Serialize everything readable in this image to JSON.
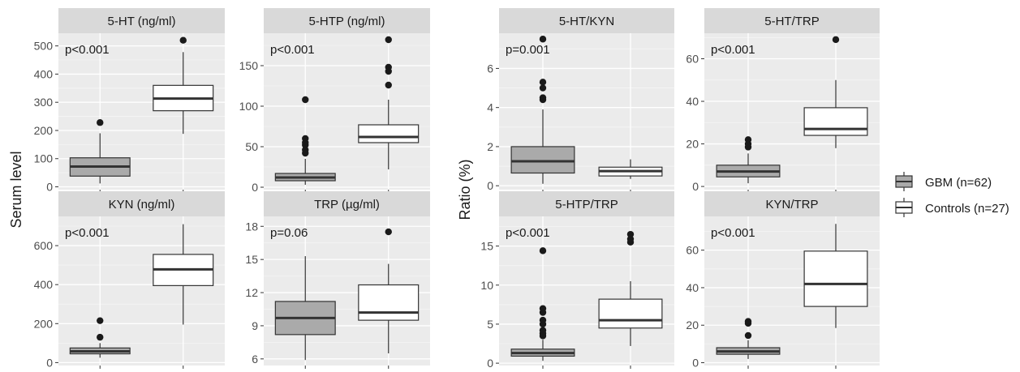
{
  "figure": {
    "left_ylabel": "Serum level",
    "right_ylabel": "Ratio (%)"
  },
  "legend": {
    "items": [
      {
        "label": "GBM (n=62)",
        "color": "#aaaaaa"
      },
      {
        "label": "Controls (n=27)",
        "color": "#ffffff"
      }
    ]
  },
  "chart_data": [
    {
      "type": "box",
      "title": "5-HT (ng/ml)",
      "pvalue": "p<0.001",
      "ylim": [
        -10,
        545
      ],
      "yticks": [
        0,
        100,
        200,
        300,
        400,
        500
      ],
      "groups": [
        {
          "name": "GBM (n=62)",
          "whisker_low": 12,
          "q1": 38,
          "median": 72,
          "q3": 103,
          "whisker_high": 190,
          "outliers": [
            228
          ]
        },
        {
          "name": "Controls (n=27)",
          "whisker_low": 188,
          "q1": 270,
          "median": 313,
          "q3": 360,
          "whisker_high": 478,
          "outliers": [
            520
          ]
        }
      ]
    },
    {
      "type": "box",
      "title": "5-HTP (ng/ml)",
      "pvalue": "p<0.001",
      "ylim": [
        -3,
        190
      ],
      "yticks": [
        0,
        50,
        100,
        150
      ],
      "groups": [
        {
          "name": "GBM (n=62)",
          "whisker_low": 3,
          "q1": 8,
          "median": 12,
          "q3": 17,
          "whisker_high": 35,
          "outliers": [
            42,
            46,
            52,
            55,
            60,
            108
          ]
        },
        {
          "name": "Controls (n=27)",
          "whisker_low": 22,
          "q1": 55,
          "median": 62,
          "q3": 77,
          "whisker_high": 108,
          "outliers": [
            126,
            143,
            148,
            182
          ]
        }
      ]
    },
    {
      "type": "box",
      "title": "KYN (ng/ml)",
      "pvalue": "p<0.001",
      "ylim": [
        -15,
        750
      ],
      "yticks": [
        0,
        200,
        400,
        600
      ],
      "groups": [
        {
          "name": "GBM (n=62)",
          "whisker_low": 25,
          "q1": 45,
          "median": 58,
          "q3": 75,
          "whisker_high": 100,
          "outliers": [
            130,
            215
          ]
        },
        {
          "name": "Controls (n=27)",
          "whisker_low": 195,
          "q1": 395,
          "median": 478,
          "q3": 555,
          "whisker_high": 710,
          "outliers": []
        }
      ]
    },
    {
      "type": "box",
      "title": "TRP (µg/ml)",
      "pvalue": "p=0.06",
      "ylim": [
        5.4,
        18.9
      ],
      "yticks": [
        6,
        9,
        12,
        15,
        18
      ],
      "groups": [
        {
          "name": "GBM (n=62)",
          "whisker_low": 5.9,
          "q1": 8.2,
          "median": 9.7,
          "q3": 11.2,
          "whisker_high": 15.3,
          "outliers": []
        },
        {
          "name": "Controls (n=27)",
          "whisker_low": 6.5,
          "q1": 9.5,
          "median": 10.2,
          "q3": 12.7,
          "whisker_high": 14.6,
          "outliers": [
            17.5
          ]
        }
      ]
    },
    {
      "type": "box",
      "title": "5-HT/KYN",
      "pvalue": "p=0.001",
      "ylim": [
        -0.2,
        7.8
      ],
      "yticks": [
        0,
        2,
        4,
        6
      ],
      "groups": [
        {
          "name": "GBM (n=62)",
          "whisker_low": 0.1,
          "q1": 0.65,
          "median": 1.25,
          "q3": 2.0,
          "whisker_high": 3.9,
          "outliers": [
            4.4,
            4.5,
            5.0,
            5.3,
            7.5
          ]
        },
        {
          "name": "Controls (n=27)",
          "whisker_low": 0.35,
          "q1": 0.5,
          "median": 0.75,
          "q3": 0.95,
          "whisker_high": 1.35,
          "outliers": []
        }
      ]
    },
    {
      "type": "box",
      "title": "5-HT/TRP",
      "pvalue": "p<0.001",
      "ylim": [
        -1.5,
        72
      ],
      "yticks": [
        0,
        20,
        40,
        60
      ],
      "groups": [
        {
          "name": "GBM (n=62)",
          "whisker_low": 1.5,
          "q1": 4.5,
          "median": 7.0,
          "q3": 10.0,
          "whisker_high": 15.5,
          "outliers": [
            18.5,
            20,
            22
          ]
        },
        {
          "name": "Controls (n=27)",
          "whisker_low": 18,
          "q1": 24,
          "median": 27,
          "q3": 37,
          "whisker_high": 50,
          "outliers": [
            69
          ]
        }
      ]
    },
    {
      "type": "box",
      "title": "5-HTP/TRP",
      "pvalue": "p<0.001",
      "ylim": [
        -0.3,
        18.8
      ],
      "yticks": [
        0,
        5,
        10,
        15
      ],
      "groups": [
        {
          "name": "GBM (n=62)",
          "whisker_low": 0.3,
          "q1": 0.9,
          "median": 1.3,
          "q3": 1.8,
          "whisker_high": 3.0,
          "outliers": [
            3.5,
            3.8,
            4.2,
            5.0,
            5.5,
            6.5,
            7.0,
            14.4
          ]
        },
        {
          "name": "Controls (n=27)",
          "whisker_low": 2.2,
          "q1": 4.5,
          "median": 5.5,
          "q3": 8.2,
          "whisker_high": 10.5,
          "outliers": [
            15.5,
            15.9,
            16.5
          ]
        }
      ]
    },
    {
      "type": "box",
      "title": "KYN/TRP",
      "pvalue": "p<0.001",
      "ylim": [
        -1.5,
        78
      ],
      "yticks": [
        0,
        20,
        40,
        60
      ],
      "groups": [
        {
          "name": "GBM (n=62)",
          "whisker_low": 2,
          "q1": 4.5,
          "median": 6,
          "q3": 8,
          "whisker_high": 12,
          "outliers": [
            14.5,
            21,
            22
          ]
        },
        {
          "name": "Controls (n=27)",
          "whisker_low": 18.5,
          "q1": 30,
          "median": 42,
          "q3": 59.5,
          "whisker_high": 74,
          "outliers": []
        }
      ]
    }
  ]
}
